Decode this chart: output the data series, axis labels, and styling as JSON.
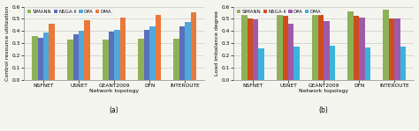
{
  "chart_a": {
    "title": "(a)",
    "ylabel": "Control resource utilization",
    "xlabel": "Network topology",
    "categories": [
      "NSFNET",
      "USNET",
      "GEANT2009",
      "DFN",
      "INTEROUTE"
    ],
    "series": {
      "SIMANN": [
        0.36,
        0.33,
        0.33,
        0.335,
        0.335
      ],
      "NSGA-II": [
        0.345,
        0.375,
        0.395,
        0.41,
        0.435
      ],
      "OPA": [
        0.39,
        0.4,
        0.41,
        0.435,
        0.475
      ],
      "DMA": [
        0.46,
        0.492,
        0.51,
        0.53,
        0.55
      ]
    },
    "colors": {
      "SIMANN": "#8db255",
      "NSGA-II": "#5b6fbd",
      "OPA": "#4fa8dc",
      "DMA": "#e8793a"
    },
    "ylim": [
      0.0,
      0.6
    ],
    "yticks": [
      0.0,
      0.1,
      0.2,
      0.3,
      0.4,
      0.5,
      0.6
    ]
  },
  "chart_b": {
    "title": "(b)",
    "ylabel": "Load imbalance degree",
    "xlabel": "Network topology",
    "categories": [
      "NSFNET",
      "USNET",
      "GEANT2009",
      "DFN",
      "INTEROUTE"
    ],
    "series": {
      "SIMANN": [
        0.57,
        0.575,
        0.55,
        0.56,
        0.575
      ],
      "NSGA-II": [
        0.5,
        0.525,
        0.53,
        0.525,
        0.505
      ],
      "OPA": [
        0.495,
        0.46,
        0.48,
        0.51,
        0.5
      ],
      "DMA": [
        0.26,
        0.27,
        0.28,
        0.268,
        0.27
      ]
    },
    "colors": {
      "SIMANN": "#8db255",
      "NSGA-II": "#cc4e1e",
      "OPA": "#a05aaa",
      "DMA": "#3ab4dc"
    },
    "ylim": [
      0.0,
      0.6
    ],
    "yticks": [
      0.0,
      0.1,
      0.2,
      0.3,
      0.4,
      0.5,
      0.6
    ]
  },
  "legend_order": [
    "SIMANN",
    "NSGA-II",
    "OPA",
    "DMA"
  ],
  "bar_width": 0.16,
  "figure_width": 4.74,
  "figure_height": 1.49,
  "dpi": 100,
  "bg_color": "#f5f5f0"
}
